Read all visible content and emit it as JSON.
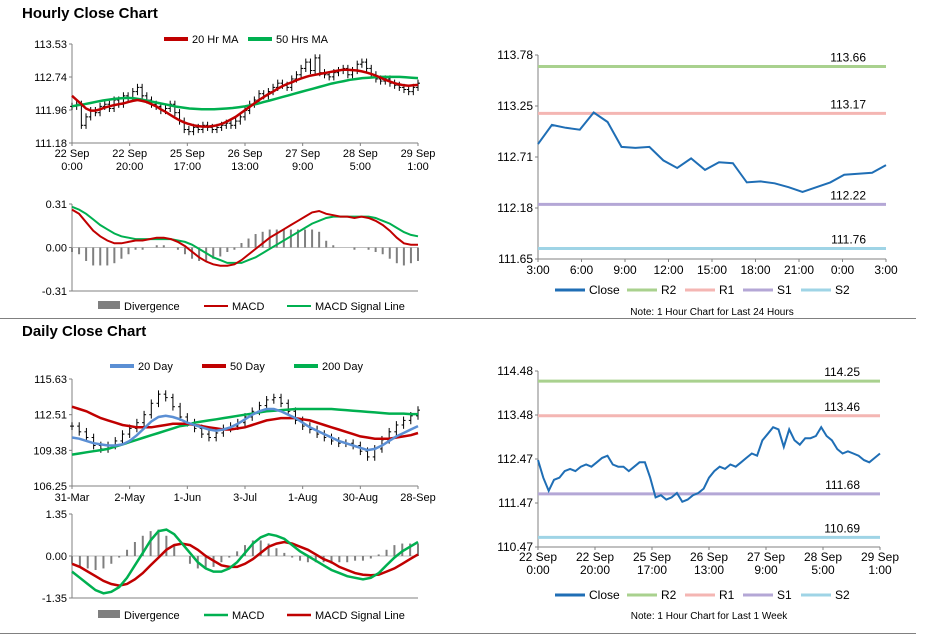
{
  "sections": {
    "hourly_title": "Hourly Close Chart",
    "daily_title": "Daily Close Chart"
  },
  "chart_data": [
    {
      "id": "hourly_price",
      "type": "line",
      "title": "",
      "legend": [
        "20 Hr MA",
        "50 Hrs MA"
      ],
      "legend_position": "top",
      "colors": {
        "close": "#000000",
        "ma20": "#c00000",
        "ma50": "#00b050"
      },
      "y_ticks": [
        "113.53",
        "112.74",
        "111.96",
        "111.18"
      ],
      "ylim": [
        111.18,
        113.53
      ],
      "x_ticks": [
        [
          "22 Sep",
          "0:00"
        ],
        [
          "22 Sep",
          "20:00"
        ],
        [
          "25 Sep",
          "17:00"
        ],
        [
          "26 Sep",
          "13:00"
        ],
        [
          "27 Sep",
          "9:00"
        ],
        [
          "28 Sep",
          "5:00"
        ],
        [
          "29 Sep",
          "1:00"
        ]
      ],
      "close": [
        112.05,
        112.1,
        111.6,
        111.8,
        111.95,
        111.9,
        112.05,
        112.1,
        112.0,
        112.2,
        112.1,
        112.3,
        112.25,
        112.4,
        112.5,
        112.3,
        112.2,
        112.1,
        112.05,
        111.95,
        112.0,
        112.1,
        111.9,
        111.7,
        111.5,
        111.45,
        111.55,
        111.5,
        111.6,
        111.55,
        111.5,
        111.55,
        111.6,
        111.65,
        111.6,
        111.7,
        111.8,
        111.95,
        112.1,
        112.2,
        112.35,
        112.3,
        112.4,
        112.5,
        112.6,
        112.55,
        112.5,
        112.7,
        112.8,
        112.95,
        113.1,
        112.9,
        113.2,
        112.85,
        112.8,
        112.75,
        112.85,
        112.9,
        112.95,
        112.8,
        112.9,
        113.05,
        113.1,
        112.95,
        112.8,
        112.7,
        112.65,
        112.7,
        112.6,
        112.55,
        112.5,
        112.45,
        112.4,
        112.5,
        112.6
      ],
      "ma20": [
        112.3,
        112.2,
        112.1,
        112.0,
        111.95,
        111.95,
        111.98,
        112.02,
        112.05,
        112.08,
        112.1,
        112.12,
        112.15,
        112.18,
        112.2,
        112.18,
        112.15,
        112.1,
        112.05,
        111.98,
        111.92,
        111.85,
        111.78,
        111.72,
        111.67,
        111.63,
        111.6,
        111.58,
        111.57,
        111.57,
        111.58,
        111.6,
        111.63,
        111.68,
        111.74,
        111.8,
        111.88,
        111.96,
        112.04,
        112.12,
        112.2,
        112.27,
        112.34,
        112.4,
        112.47,
        112.53,
        112.58,
        112.62,
        112.67,
        112.71,
        112.75,
        112.78,
        112.8,
        112.82,
        112.84,
        112.86,
        112.88,
        112.9,
        112.92,
        112.92,
        112.91,
        112.9,
        112.88,
        112.85,
        112.82,
        112.78,
        112.73,
        112.68,
        112.64,
        112.6,
        112.57,
        112.55,
        112.54,
        112.55,
        112.56
      ],
      "ma50": [
        112.05,
        112.08,
        112.1,
        112.13,
        112.16,
        112.19,
        112.21,
        112.23,
        112.24,
        112.25,
        112.24,
        112.22,
        112.19,
        112.16,
        112.13,
        112.1,
        112.07,
        112.04,
        112.02,
        112.0,
        111.99,
        111.98,
        111.98,
        111.98,
        111.99,
        112.0,
        112.01,
        112.03,
        112.05,
        112.08,
        112.11,
        112.15,
        112.19,
        112.23,
        112.27,
        112.31,
        112.35,
        112.39,
        112.43,
        112.47,
        112.51,
        112.55,
        112.59,
        112.62,
        112.65,
        112.68,
        112.7,
        112.72,
        112.73,
        112.74,
        112.75,
        112.75,
        112.75,
        112.75,
        112.74,
        112.73,
        112.72
      ]
    },
    {
      "id": "hourly_macd",
      "type": "line",
      "title": "",
      "legend": [
        "Divergence",
        "MACD",
        "MACD Signal Line"
      ],
      "legend_position": "bottom",
      "colors": {
        "divergence": "#7f7f7f",
        "macd": "#c00000",
        "signal": "#00b050"
      },
      "y_ticks": [
        "0.31",
        "0.00",
        "-0.31"
      ],
      "ylim": [
        -0.31,
        0.31
      ],
      "macd": [
        0.27,
        0.24,
        0.18,
        0.12,
        0.08,
        0.05,
        0.03,
        0.03,
        0.04,
        0.05,
        0.05,
        0.06,
        0.07,
        0.07,
        0.06,
        0.04,
        0.01,
        -0.03,
        -0.07,
        -0.1,
        -0.12,
        -0.13,
        -0.13,
        -0.12,
        -0.09,
        -0.05,
        -0.01,
        0.03,
        0.07,
        0.1,
        0.13,
        0.16,
        0.19,
        0.22,
        0.25,
        0.26,
        0.24,
        0.23,
        0.22,
        0.22,
        0.21,
        0.22,
        0.21,
        0.19,
        0.16,
        0.12,
        0.07,
        0.03,
        0.02,
        0.02
      ],
      "signal": [
        0.29,
        0.27,
        0.24,
        0.2,
        0.16,
        0.13,
        0.1,
        0.08,
        0.07,
        0.06,
        0.06,
        0.06,
        0.06,
        0.06,
        0.06,
        0.05,
        0.04,
        0.02,
        -0.01,
        -0.04,
        -0.07,
        -0.09,
        -0.11,
        -0.11,
        -0.11,
        -0.09,
        -0.07,
        -0.04,
        -0.01,
        0.02,
        0.05,
        0.08,
        0.11,
        0.14,
        0.17,
        0.19,
        0.21,
        0.22,
        0.22,
        0.22,
        0.22,
        0.22,
        0.22,
        0.21,
        0.19,
        0.17,
        0.14,
        0.11,
        0.09,
        0.08
      ],
      "divergence": [
        -0.02,
        -0.03,
        -0.06,
        -0.08,
        -0.08,
        -0.08,
        -0.07,
        -0.05,
        -0.03,
        -0.01,
        -0.01,
        0.0,
        0.01,
        0.01,
        0.0,
        -0.01,
        -0.03,
        -0.05,
        -0.06,
        -0.06,
        -0.05,
        -0.04,
        -0.02,
        -0.01,
        0.02,
        0.04,
        0.06,
        0.07,
        0.08,
        0.08,
        0.08,
        0.08,
        0.08,
        0.08,
        0.08,
        0.07,
        0.03,
        0.01,
        0.0,
        0.0,
        -0.01,
        0.0,
        -0.01,
        -0.02,
        -0.03,
        -0.05,
        -0.07,
        -0.08,
        -0.07,
        -0.06
      ]
    },
    {
      "id": "hourly_24h",
      "type": "line",
      "title": "",
      "legend": [
        "Close",
        "R2",
        "R1",
        "S1",
        "S2"
      ],
      "legend_position": "bottom",
      "colors": {
        "close": "#1f6eb5",
        "R2": "#a9d18e",
        "R1": "#f4b6b3",
        "S1": "#b4a7d6",
        "S2": "#9fd4e6"
      },
      "y_ticks": [
        "113.78",
        "113.25",
        "112.71",
        "112.18",
        "111.65"
      ],
      "ylim": [
        111.65,
        113.78
      ],
      "x_ticks": [
        "3:00",
        "6:00",
        "9:00",
        "12:00",
        "15:00",
        "18:00",
        "21:00",
        "0:00",
        "3:00"
      ],
      "levels": {
        "R2": 113.66,
        "R1": 113.17,
        "S1": 112.22,
        "S2": 111.76
      },
      "level_labels": {
        "R2": "113.66",
        "R1": "113.17",
        "S1": "112.22",
        "S2": "111.76"
      },
      "close": [
        112.85,
        113.05,
        113.02,
        113.0,
        113.18,
        113.08,
        112.82,
        112.81,
        112.82,
        112.68,
        112.6,
        112.7,
        112.58,
        112.66,
        112.65,
        112.45,
        112.46,
        112.44,
        112.4,
        112.35,
        112.4,
        112.45,
        112.53,
        112.54,
        112.55,
        112.63
      ],
      "note": "Note: 1 Hour Chart for Last 24 Hours"
    },
    {
      "id": "daily_price",
      "type": "line",
      "title": "",
      "legend": [
        "20 Day",
        "50 Day",
        "200 Day"
      ],
      "legend_position": "top",
      "colors": {
        "close": "#000000",
        "ma20": "#5b8fd4",
        "ma50": "#c00000",
        "ma200": "#00b050"
      },
      "y_ticks": [
        "115.63",
        "112.51",
        "109.38",
        "106.25"
      ],
      "ylim": [
        106.25,
        115.63
      ],
      "x_ticks": [
        "31-Mar",
        "2-May",
        "1-Jun",
        "3-Jul",
        "1-Aug",
        "30-Aug",
        "28-Sep"
      ],
      "close": [
        111.5,
        111.0,
        110.5,
        109.8,
        109.5,
        109.8,
        110.2,
        110.8,
        111.3,
        111.8,
        112.5,
        113.5,
        114.3,
        114.0,
        113.2,
        112.3,
        111.8,
        111.3,
        110.8,
        110.5,
        110.9,
        111.3,
        111.5,
        111.8,
        112.3,
        112.8,
        113.3,
        113.8,
        114.0,
        113.5,
        112.8,
        112.0,
        111.5,
        111.2,
        110.8,
        110.5,
        110.2,
        110.0,
        110.0,
        109.8,
        109.3,
        108.8,
        109.5,
        110.3,
        111.0,
        111.6,
        112.0,
        112.4,
        112.9
      ],
      "ma20": [
        110.5,
        110.4,
        110.2,
        110.0,
        109.9,
        109.8,
        109.8,
        109.9,
        110.2,
        110.7,
        111.3,
        111.9,
        112.3,
        112.4,
        112.3,
        112.1,
        111.8,
        111.6,
        111.4,
        111.2,
        111.1,
        111.2,
        111.4,
        111.7,
        112.1,
        112.5,
        112.8,
        113.0,
        113.0,
        112.8,
        112.5,
        112.2,
        111.8,
        111.4,
        111.1,
        110.8,
        110.5,
        110.2,
        110.0,
        109.8,
        109.6,
        109.4,
        109.5,
        109.8,
        110.2,
        110.6,
        110.9,
        111.2,
        111.5
      ],
      "ma50": [
        113.2,
        113.0,
        112.8,
        112.5,
        112.2,
        112.0,
        111.8,
        111.6,
        111.5,
        111.4,
        111.4,
        111.4,
        111.5,
        111.6,
        111.7,
        111.7,
        111.7,
        111.6,
        111.5,
        111.4,
        111.3,
        111.2,
        111.2,
        111.3,
        111.4,
        111.6,
        111.8,
        112.0,
        112.1,
        112.2,
        112.2,
        112.2,
        112.1,
        112.0,
        111.8,
        111.6,
        111.4,
        111.2,
        111.0,
        110.8,
        110.6,
        110.5,
        110.4,
        110.4,
        110.4,
        110.5,
        110.6,
        110.7,
        110.9
      ],
      "ma200": [
        109.0,
        109.1,
        109.2,
        109.3,
        109.4,
        109.5,
        109.7,
        109.9,
        110.1,
        110.3,
        110.5,
        110.7,
        110.9,
        111.1,
        111.3,
        111.5,
        111.6,
        111.8,
        111.9,
        112.0,
        112.1,
        112.2,
        112.3,
        112.4,
        112.5,
        112.6,
        112.7,
        112.8,
        112.85,
        112.9,
        112.95,
        113.0,
        113.0,
        113.0,
        113.0,
        113.0,
        113.0,
        112.95,
        112.9,
        112.85,
        112.8,
        112.75,
        112.7,
        112.65,
        112.6,
        112.6,
        112.6,
        112.55,
        112.55
      ]
    },
    {
      "id": "daily_macd",
      "type": "line",
      "title": "",
      "legend": [
        "Divergence",
        "MACD",
        "MACD Signal Line"
      ],
      "legend_position": "bottom",
      "colors": {
        "divergence": "#7f7f7f",
        "macd": "#00b050",
        "signal": "#c00000"
      },
      "y_ticks": [
        "1.35",
        "0.00",
        "-1.35"
      ],
      "ylim": [
        -1.35,
        1.35
      ],
      "macd": [
        -0.5,
        -0.7,
        -0.9,
        -1.1,
        -1.2,
        -1.15,
        -1.0,
        -0.7,
        -0.3,
        0.1,
        0.5,
        0.8,
        0.85,
        0.7,
        0.4,
        0.1,
        -0.2,
        -0.4,
        -0.5,
        -0.5,
        -0.4,
        -0.2,
        0.1,
        0.4,
        0.6,
        0.7,
        0.65,
        0.55,
        0.35,
        0.15,
        0.0,
        -0.15,
        -0.3,
        -0.45,
        -0.55,
        -0.65,
        -0.7,
        -0.75,
        -0.7,
        -0.55,
        -0.3,
        -0.05,
        0.15,
        0.3,
        0.45
      ],
      "signal": [
        -0.25,
        -0.35,
        -0.5,
        -0.65,
        -0.8,
        -0.9,
        -0.95,
        -0.9,
        -0.75,
        -0.55,
        -0.3,
        -0.05,
        0.2,
        0.35,
        0.4,
        0.35,
        0.2,
        0.0,
        -0.15,
        -0.3,
        -0.35,
        -0.35,
        -0.25,
        -0.1,
        0.1,
        0.3,
        0.4,
        0.45,
        0.4,
        0.3,
        0.2,
        0.05,
        -0.1,
        -0.2,
        -0.35,
        -0.45,
        -0.55,
        -0.6,
        -0.62,
        -0.6,
        -0.5,
        -0.4,
        -0.25,
        -0.1,
        0.05
      ],
      "divergence": [
        -0.25,
        -0.35,
        -0.4,
        -0.45,
        -0.4,
        -0.25,
        -0.05,
        0.2,
        0.45,
        0.65,
        0.8,
        0.85,
        0.65,
        0.35,
        0.0,
        -0.25,
        -0.4,
        -0.4,
        -0.35,
        -0.2,
        -0.05,
        0.15,
        0.35,
        0.5,
        0.5,
        0.4,
        0.25,
        0.1,
        -0.05,
        -0.15,
        -0.2,
        -0.2,
        -0.2,
        -0.25,
        -0.2,
        -0.2,
        -0.15,
        -0.15,
        -0.08,
        0.05,
        0.2,
        0.35,
        0.4,
        0.4,
        0.4
      ]
    },
    {
      "id": "daily_week",
      "type": "line",
      "title": "",
      "legend": [
        "Close",
        "R2",
        "R1",
        "S1",
        "S2"
      ],
      "legend_position": "bottom",
      "colors": {
        "close": "#1f6eb5",
        "R2": "#a9d18e",
        "R1": "#f4b6b3",
        "S1": "#b4a7d6",
        "S2": "#9fd4e6"
      },
      "y_ticks": [
        "114.48",
        "113.48",
        "112.47",
        "111.47",
        "110.47"
      ],
      "ylim": [
        110.47,
        114.48
      ],
      "x_ticks": [
        [
          "22 Sep",
          "0:00"
        ],
        [
          "22 Sep",
          "20:00"
        ],
        [
          "25 Sep",
          "17:00"
        ],
        [
          "26 Sep",
          "13:00"
        ],
        [
          "27 Sep",
          "9:00"
        ],
        [
          "28 Sep",
          "5:00"
        ],
        [
          "29 Sep",
          "1:00"
        ]
      ],
      "levels": {
        "R2": 114.25,
        "R1": 113.46,
        "S1": 111.68,
        "S2": 110.69
      },
      "level_labels": {
        "R2": "114.25",
        "R1": "113.46",
        "S1": "111.68",
        "S2": "110.69"
      },
      "close": [
        112.45,
        112.05,
        111.75,
        112.0,
        112.05,
        112.2,
        112.25,
        112.2,
        112.3,
        112.35,
        112.3,
        112.4,
        112.5,
        112.55,
        112.35,
        112.3,
        112.3,
        112.2,
        112.3,
        112.4,
        112.4,
        112.05,
        111.6,
        111.65,
        111.55,
        111.6,
        111.7,
        111.5,
        111.55,
        111.65,
        111.7,
        111.8,
        112.05,
        112.2,
        112.3,
        112.25,
        112.35,
        112.3,
        112.4,
        112.5,
        112.6,
        112.55,
        112.9,
        113.05,
        113.2,
        113.15,
        112.75,
        113.15,
        112.9,
        112.8,
        112.95,
        112.95,
        113.0,
        113.2,
        113.0,
        112.9,
        112.7,
        112.6,
        112.65,
        112.6,
        112.55,
        112.45,
        112.4,
        112.5,
        112.6
      ],
      "note": "Note: 1 Hour Chart for Last 1 Week"
    }
  ]
}
